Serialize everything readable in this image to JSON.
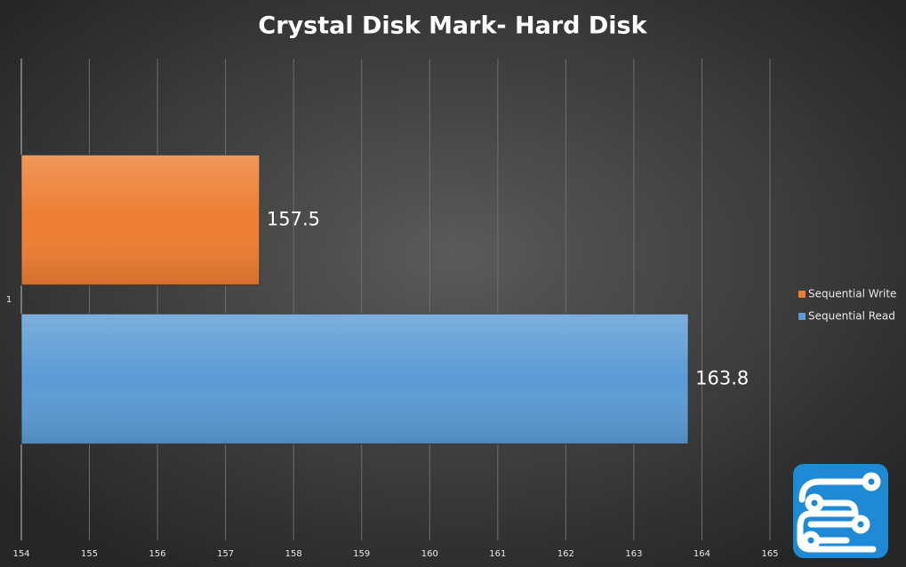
{
  "chart_data": {
    "type": "hbar",
    "title": "Crystal Disk Mark- Hard Disk",
    "categories": [
      "1"
    ],
    "series": [
      {
        "name": "Sequential Write",
        "color": "#ed7d31",
        "values": [
          157.5
        ]
      },
      {
        "name": "Sequential Read",
        "color": "#5b9bd5",
        "values": [
          163.8
        ]
      }
    ],
    "xlim": [
      154,
      165
    ],
    "xticks": [
      154,
      155,
      156,
      157,
      158,
      159,
      160,
      161,
      162,
      163,
      164,
      165
    ],
    "grid": true,
    "legend": "right"
  }
}
